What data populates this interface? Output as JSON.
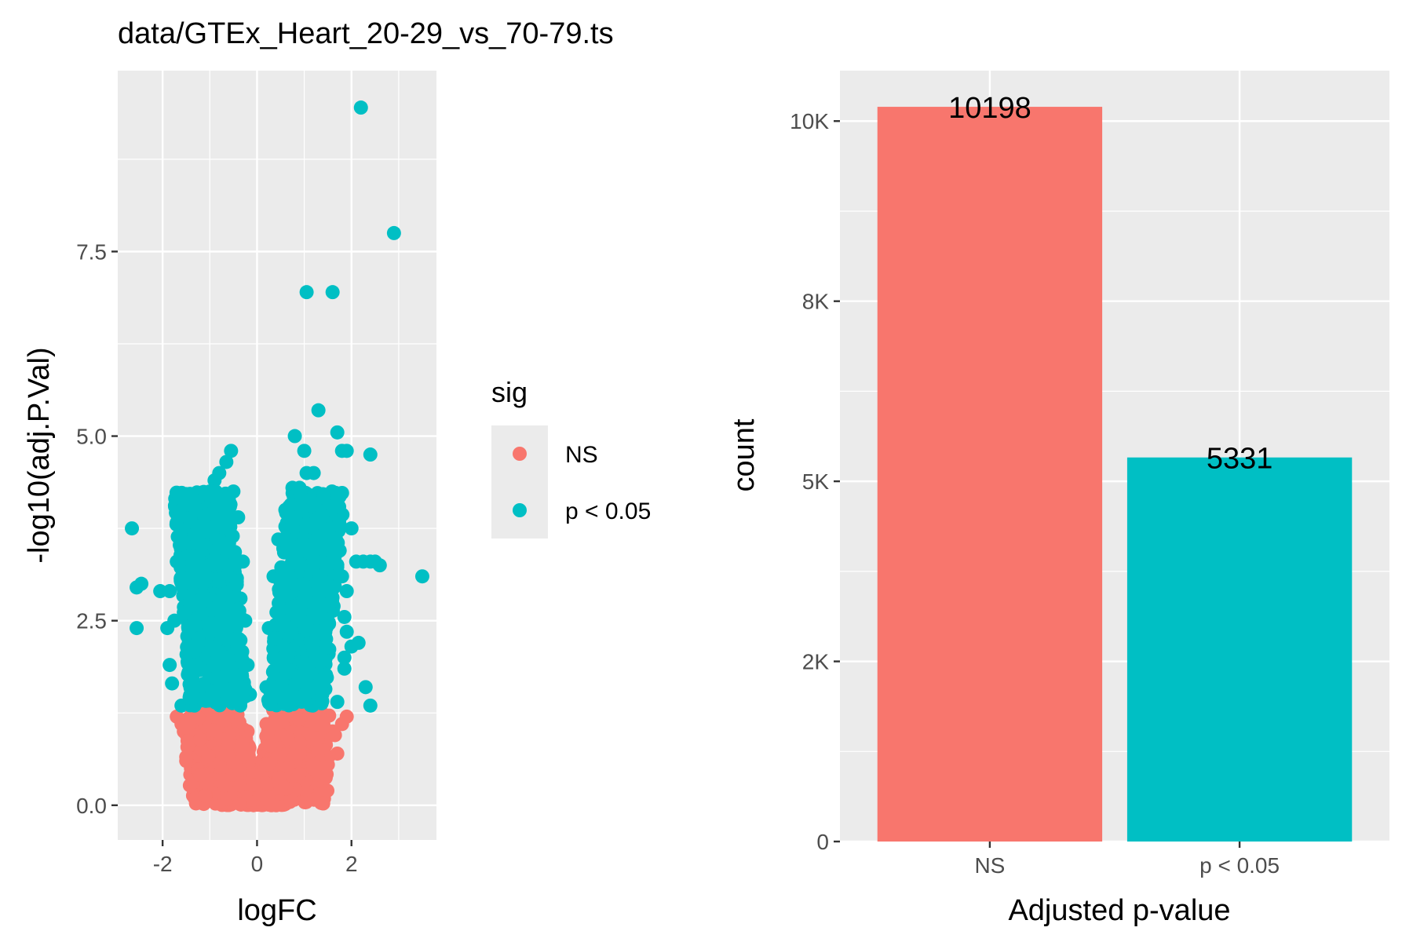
{
  "chart_data": [
    {
      "type": "scatter",
      "title": "data/GTEx_Heart_20-29_vs_70-79.ts",
      "xlabel": "logFC",
      "ylabel": "-log10(adj.P.Val)",
      "xlim": [
        -2.95,
        3.8
      ],
      "ylim": [
        -0.47,
        9.95
      ],
      "x_ticks": [
        -2,
        0,
        2
      ],
      "x_tick_labels": [
        "-2",
        "0",
        "2"
      ],
      "y_ticks": [
        0.0,
        2.5,
        5.0,
        7.5
      ],
      "y_tick_labels": [
        "0.0",
        "2.5",
        "5.0",
        "7.5"
      ],
      "grid": true,
      "legend": {
        "title": "sig",
        "placement": "right"
      },
      "series": [
        {
          "name": "NS",
          "color": "#F8766D",
          "points": [
            [
              0.0,
              0.02
            ],
            [
              0.1,
              0.05
            ],
            [
              -0.1,
              0.06
            ],
            [
              0.2,
              0.1
            ],
            [
              -0.2,
              0.12
            ],
            [
              0.3,
              0.2
            ],
            [
              -0.3,
              0.22
            ],
            [
              0.45,
              0.3
            ],
            [
              -0.45,
              0.35
            ],
            [
              0.6,
              0.4
            ],
            [
              -0.6,
              0.45
            ],
            [
              0.8,
              0.5
            ],
            [
              -0.8,
              0.55
            ],
            [
              1.0,
              0.6
            ],
            [
              -1.0,
              0.65
            ],
            [
              1.2,
              0.7
            ],
            [
              -1.2,
              0.75
            ],
            [
              1.45,
              0.85
            ],
            [
              -1.45,
              0.95
            ],
            [
              1.6,
              1.0
            ],
            [
              -1.6,
              1.1
            ],
            [
              1.7,
              0.7
            ],
            [
              -1.5,
              0.6
            ],
            [
              1.9,
              1.2
            ],
            [
              1.4,
              0.45
            ],
            [
              -1.3,
              0.4
            ],
            [
              1.8,
              1.1
            ],
            [
              -1.7,
              1.2
            ],
            [
              1.2,
              0.3
            ],
            [
              -1.1,
              0.25
            ],
            [
              0.9,
              1.2
            ],
            [
              -0.9,
              1.2
            ],
            [
              0.5,
              1.25
            ],
            [
              -0.5,
              1.25
            ],
            [
              0.2,
              1.1
            ],
            [
              -0.2,
              1.0
            ],
            [
              1.1,
              0.2
            ],
            [
              -0.8,
              0.1
            ],
            [
              0.7,
              0.15
            ],
            [
              1.5,
              0.55
            ],
            [
              -1.4,
              0.5
            ],
            [
              0.3,
              0.8
            ],
            [
              -0.3,
              0.7
            ],
            [
              0.6,
              0.9
            ],
            [
              -0.6,
              1.0
            ],
            [
              1.65,
              0.95
            ],
            [
              -1.55,
              1.0
            ],
            [
              1.3,
              1.0
            ],
            [
              -1.25,
              1.05
            ],
            [
              0.15,
              0.4
            ]
          ]
        },
        {
          "name": "p < 0.05",
          "color": "#00BFC4",
          "points": [
            [
              2.2,
              9.45
            ],
            [
              2.9,
              7.75
            ],
            [
              1.05,
              6.95
            ],
            [
              1.6,
              6.95
            ],
            [
              1.3,
              5.35
            ],
            [
              1.7,
              5.05
            ],
            [
              0.8,
              5.0
            ],
            [
              1.0,
              4.8
            ],
            [
              1.8,
              4.8
            ],
            [
              1.9,
              4.8
            ],
            [
              2.4,
              4.75
            ],
            [
              -0.55,
              4.8
            ],
            [
              -0.65,
              4.65
            ],
            [
              -0.8,
              4.5
            ],
            [
              -0.9,
              4.4
            ],
            [
              -1.0,
              4.25
            ],
            [
              -1.2,
              4.1
            ],
            [
              -1.4,
              3.9
            ],
            [
              -1.55,
              3.7
            ],
            [
              -1.7,
              3.3
            ],
            [
              -1.55,
              2.9
            ],
            [
              -1.75,
              2.5
            ],
            [
              -1.85,
              1.9
            ],
            [
              -1.8,
              1.65
            ],
            [
              -1.6,
              1.35
            ],
            [
              -2.65,
              3.75
            ],
            [
              -2.45,
              3.0
            ],
            [
              -2.55,
              2.95
            ],
            [
              -2.05,
              2.9
            ],
            [
              -2.55,
              2.4
            ],
            [
              -1.85,
              2.9
            ],
            [
              -1.9,
              2.4
            ],
            [
              -0.5,
              4.25
            ],
            [
              -0.4,
              3.9
            ],
            [
              -0.3,
              3.3
            ],
            [
              -0.25,
              2.5
            ],
            [
              -0.2,
              1.9
            ],
            [
              -0.15,
              1.5
            ],
            [
              0.2,
              1.6
            ],
            [
              0.25,
              2.4
            ],
            [
              0.35,
              3.1
            ],
            [
              0.45,
              3.6
            ],
            [
              0.6,
              4.0
            ],
            [
              0.75,
              4.3
            ],
            [
              0.9,
              4.3
            ],
            [
              1.05,
              4.5
            ],
            [
              1.2,
              4.5
            ],
            [
              1.45,
              4.15
            ],
            [
              1.55,
              3.95
            ],
            [
              1.6,
              3.8
            ],
            [
              1.75,
              3.45
            ],
            [
              2.0,
              3.75
            ],
            [
              2.1,
              3.3
            ],
            [
              2.25,
              3.3
            ],
            [
              2.4,
              3.3
            ],
            [
              2.5,
              3.3
            ],
            [
              2.6,
              3.25
            ],
            [
              3.5,
              3.1
            ],
            [
              1.8,
              3.1
            ],
            [
              1.9,
              2.9
            ],
            [
              1.85,
              2.55
            ],
            [
              1.9,
              2.35
            ],
            [
              2.0,
              2.15
            ],
            [
              2.15,
              2.2
            ],
            [
              1.85,
              2.0
            ],
            [
              2.3,
              1.6
            ],
            [
              2.4,
              1.35
            ],
            [
              1.85,
              1.85
            ],
            [
              1.7,
              1.4
            ],
            [
              -1.2,
              3.4
            ],
            [
              -1.0,
              3.0
            ],
            [
              -0.8,
              2.6
            ],
            [
              -0.6,
              2.0
            ],
            [
              -0.45,
              1.6
            ],
            [
              0.5,
              1.9
            ],
            [
              0.7,
              2.5
            ],
            [
              0.9,
              2.9
            ],
            [
              1.1,
              3.3
            ],
            [
              1.3,
              3.6
            ],
            [
              1.5,
              3.0
            ],
            [
              0.4,
              2.2
            ],
            [
              -0.35,
              2.8
            ],
            [
              -1.3,
              2.2
            ],
            [
              -1.45,
              1.8
            ]
          ]
        }
      ]
    },
    {
      "type": "bar",
      "xlabel": "Adjusted p-value",
      "ylabel": "count",
      "categories": [
        "NS",
        "p < 0.05"
      ],
      "values": [
        10198,
        5331
      ],
      "data_labels": [
        "10198",
        "5331"
      ],
      "colors": [
        "#F8766D",
        "#00BFC4"
      ],
      "ylim": [
        0,
        10700
      ],
      "y_ticks": [
        0,
        2500,
        5000,
        7500,
        10000
      ],
      "y_tick_labels": [
        "0",
        "2K",
        "5K",
        "8K",
        "10K"
      ],
      "grid": true
    }
  ]
}
